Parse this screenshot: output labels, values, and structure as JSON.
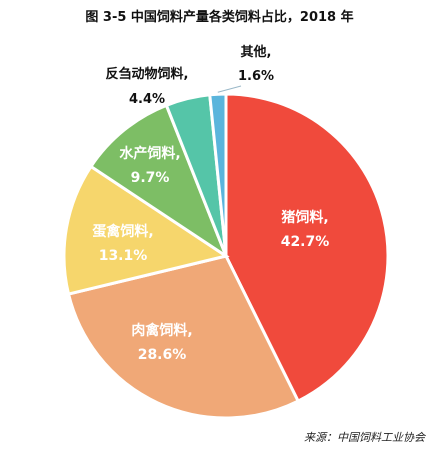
{
  "title": "图 3-5 中国饲料产量各类饲料占比，2018 年",
  "source": "来源：中国饲料工业协会",
  "chart_data": {
    "type": "pie",
    "slices": [
      {
        "label": "猪饲料,",
        "value": 42.7,
        "value_label": "42.7%",
        "color": "#F04A3C"
      },
      {
        "label": "肉禽饲料,",
        "value": 28.6,
        "value_label": "28.6%",
        "color": "#F0A877"
      },
      {
        "label": "蛋禽饲料,",
        "value": 13.1,
        "value_label": "13.1%",
        "color": "#F6D66C"
      },
      {
        "label": "水产饲料,",
        "value": 9.7,
        "value_label": "9.7%",
        "color": "#7DBE65"
      },
      {
        "label": "反刍动物饲料,",
        "value": 4.4,
        "value_label": "4.4%",
        "color": "#55C5A8"
      },
      {
        "label": "其他,",
        "value": 1.6,
        "value_label": "1.6%",
        "color": "#5BB5DC"
      }
    ]
  }
}
